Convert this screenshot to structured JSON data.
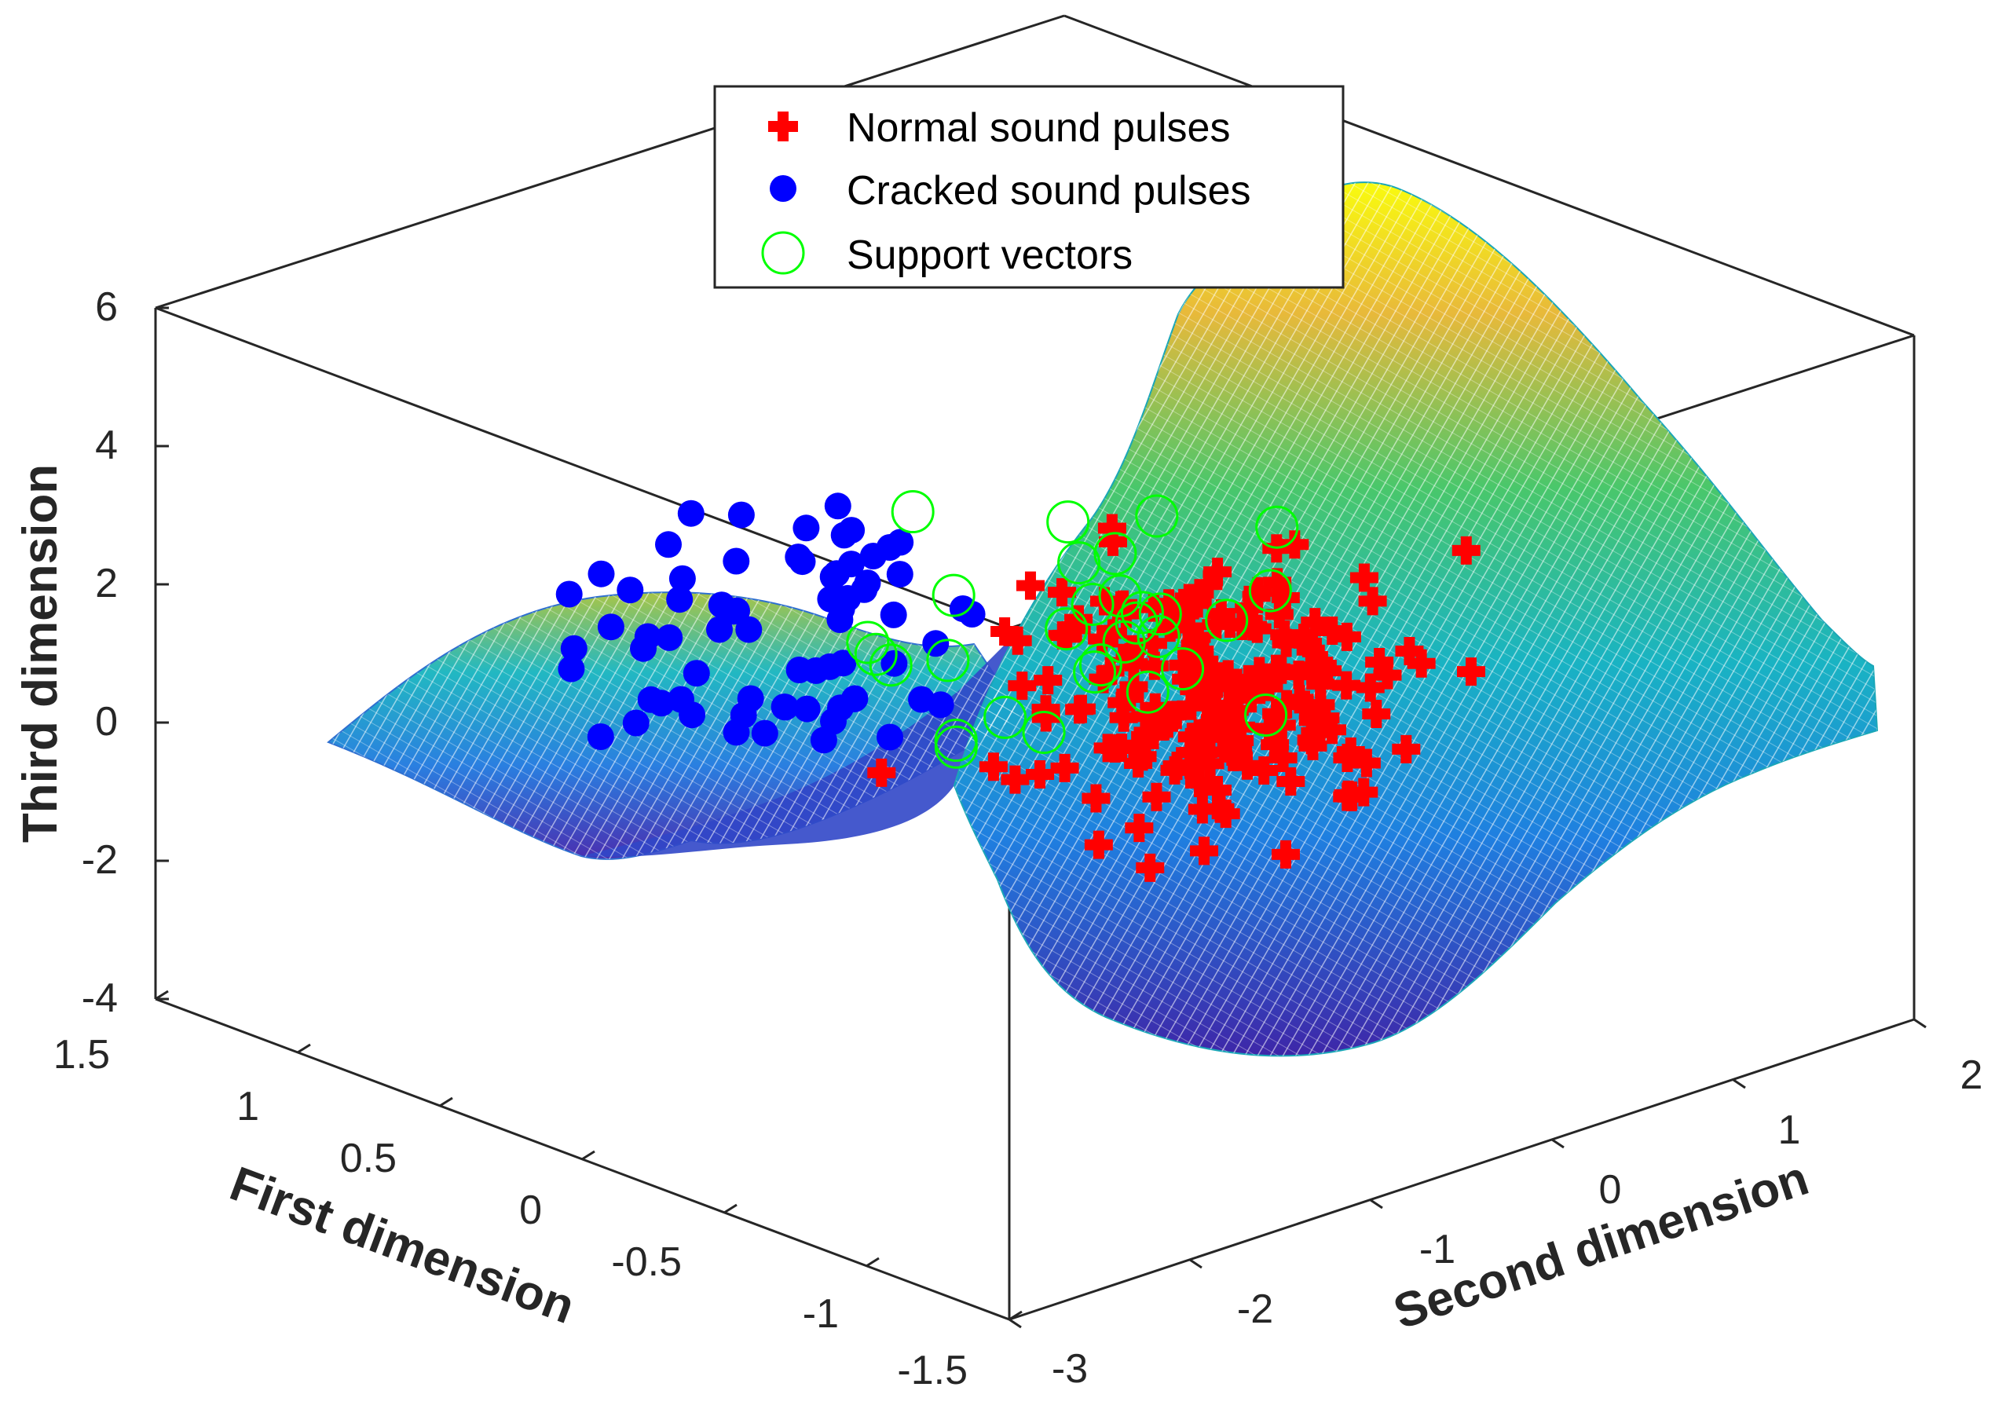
{
  "chart_data": {
    "type": "scatter3d+surface",
    "title": "",
    "axes": {
      "x": {
        "label": "First dimension",
        "ticks": [
          "1.5",
          "1",
          "0.5",
          "0",
          "-0.5",
          "-1",
          "-1.5"
        ],
        "range": [
          -1.5,
          1.5
        ]
      },
      "y": {
        "label": "Second dimension",
        "ticks": [
          "-3",
          "-2",
          "-1",
          "0",
          "1",
          "2"
        ],
        "range": [
          -3,
          2
        ]
      },
      "z": {
        "label": "Third dimension",
        "ticks": [
          "6",
          "4",
          "2",
          "0",
          "-2",
          "-4"
        ],
        "range": [
          -4,
          6
        ]
      }
    },
    "legend": {
      "placement": "top-center",
      "entries": [
        {
          "label": "Normal sound pulses",
          "marker": "plus",
          "color": "#ff0000"
        },
        {
          "label": "Cracked sound pulses",
          "marker": "filled-circle",
          "color": "#0000ff"
        },
        {
          "label": "Support vectors",
          "marker": "open-circle",
          "color": "#00ff00"
        }
      ]
    },
    "surface": {
      "colormap": "parula",
      "style": "mesh",
      "description": "SVM decision surface"
    },
    "series": [
      {
        "name": "Cracked sound pulses",
        "approx_count": 70,
        "z_range_estimate": [
          -0.5,
          3.9
        ]
      },
      {
        "name": "Normal sound pulses",
        "approx_count": 200,
        "z_range_estimate": [
          -1.5,
          2.6
        ]
      },
      {
        "name": "Support vectors",
        "approx_count": 30
      }
    ]
  }
}
